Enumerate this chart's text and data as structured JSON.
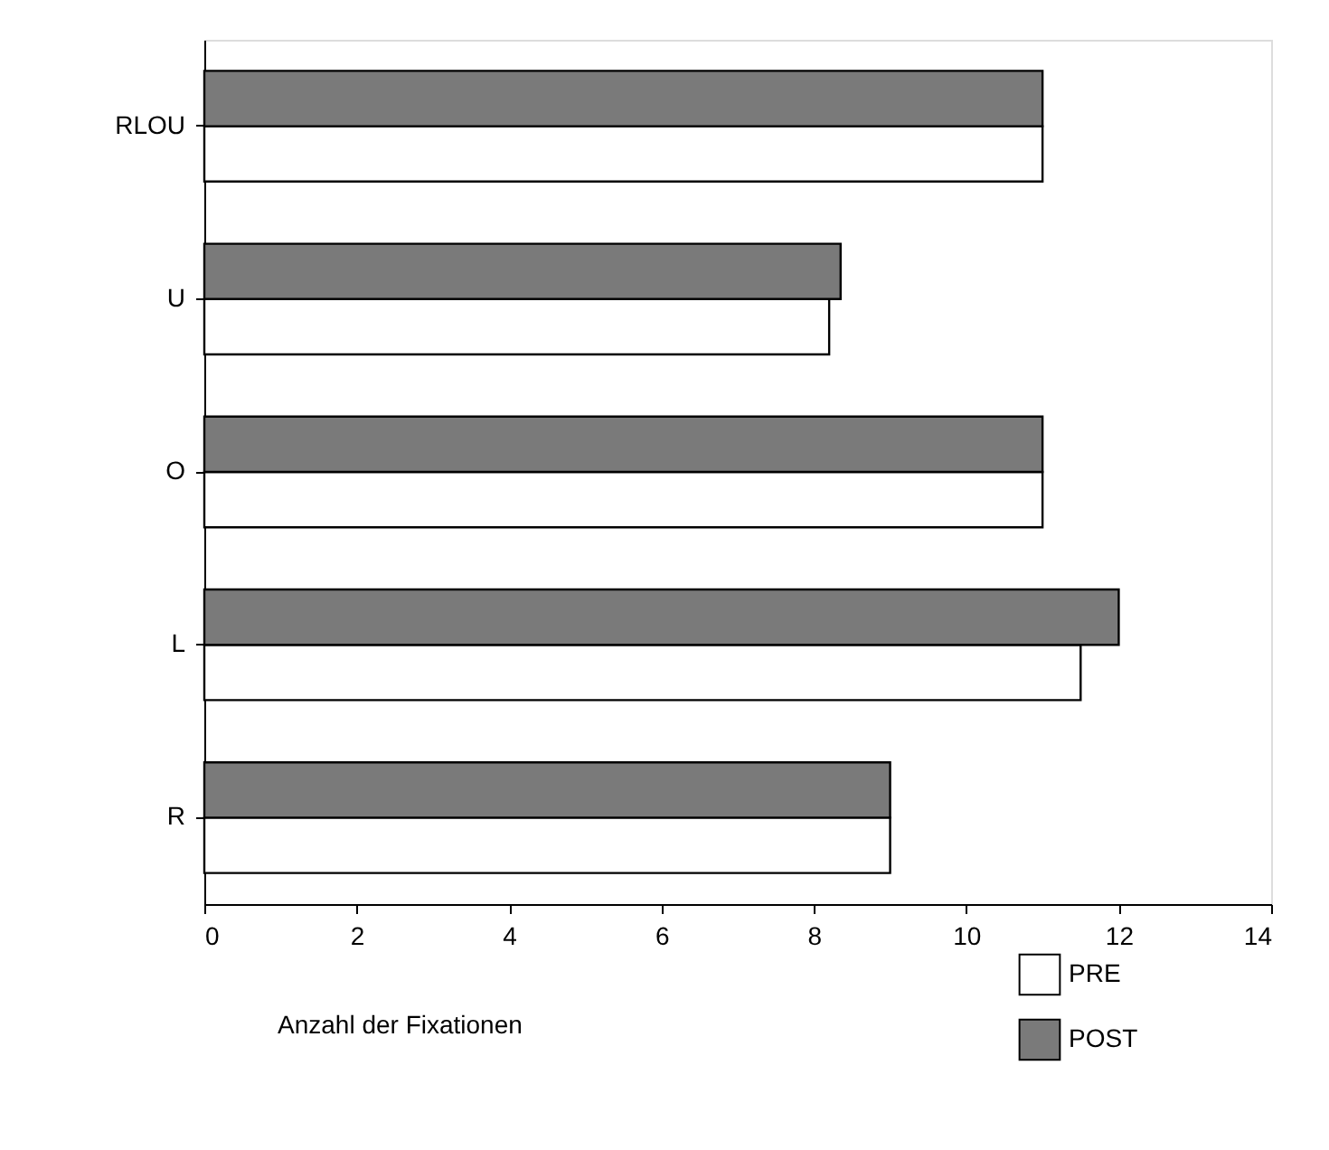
{
  "chart_data": {
    "type": "bar",
    "orientation": "horizontal",
    "xlabel": "Anzahl der Fixationen",
    "categories": [
      "RLOU",
      "U",
      "O",
      "L",
      "R"
    ],
    "series": [
      {
        "name": "PRE",
        "color": "#ffffff",
        "values": [
          11.0,
          8.2,
          11.0,
          11.5,
          9.0
        ]
      },
      {
        "name": "POST",
        "color": "#7a7a7a",
        "values": [
          11.0,
          8.35,
          11.0,
          12.0,
          9.0
        ]
      }
    ],
    "xlim": [
      0,
      14
    ],
    "xticks": [
      0,
      2,
      4,
      6,
      8,
      10,
      12,
      14
    ],
    "grid": false,
    "legend": "bottom right"
  }
}
